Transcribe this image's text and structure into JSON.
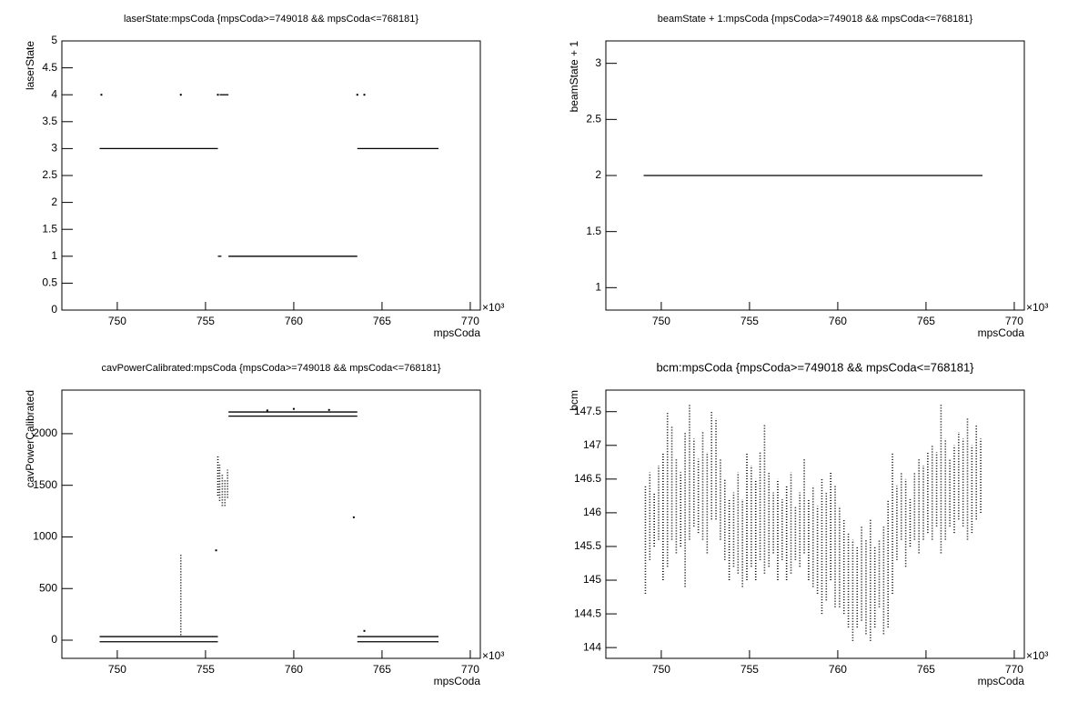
{
  "chart_data": [
    {
      "type": "scatter",
      "title": "laserState:mpsCoda {mpsCoda>=749018 && mpsCoda<=768181}",
      "xlabel": "mpsCoda",
      "ylabel": "laserState",
      "x_multiplier": "×10³",
      "color": "#000000",
      "xlim": [
        746.86,
        770.57
      ],
      "ylim": [
        0,
        5
      ],
      "xticks": [
        750,
        755,
        760,
        765,
        770
      ],
      "yticks": [
        0,
        0.5,
        1,
        1.5,
        2,
        2.5,
        3,
        3.5,
        4,
        4.5,
        5
      ],
      "segments": [
        {
          "y": 3,
          "x0": 749.0,
          "x1": 755.7
        },
        {
          "y": 3,
          "x0": 763.6,
          "x1": 768.2
        },
        {
          "y": 1,
          "x0": 755.7,
          "x1": 755.9
        },
        {
          "y": 1,
          "x0": 756.3,
          "x1": 763.6
        },
        {
          "y": 4,
          "x0": 755.8,
          "x1": 756.3
        }
      ],
      "points": {
        "x": [
          749.1,
          753.6,
          755.7,
          763.6,
          764.0
        ],
        "y": [
          4,
          4,
          4,
          4,
          4
        ]
      }
    },
    {
      "type": "scatter",
      "title": "beamState + 1:mpsCoda {mpsCoda>=749018 && mpsCoda<=768181}",
      "xlabel": "mpsCoda",
      "ylabel": "beamState + 1",
      "x_multiplier": "×10³",
      "color": "#000000",
      "xlim": [
        746.86,
        770.57
      ],
      "ylim": [
        0.8,
        3.2
      ],
      "xticks": [
        750,
        755,
        760,
        765,
        770
      ],
      "yticks": [
        1,
        1.5,
        2,
        2.5,
        3
      ],
      "segments": [
        {
          "y": 2,
          "x0": 749.0,
          "x1": 768.2
        }
      ]
    },
    {
      "type": "scatter",
      "title": "cavPowerCalibrated:mpsCoda {mpsCoda>=749018 && mpsCoda<=768181}",
      "xlabel": "mpsCoda",
      "ylabel": "cavPowerCalibrated",
      "x_multiplier": "×10³",
      "color": "#000000",
      "xlim": [
        746.86,
        770.57
      ],
      "ylim": [
        -176,
        2422
      ],
      "xticks": [
        750,
        755,
        760,
        765,
        770
      ],
      "yticks": [
        0,
        500,
        1000,
        1500,
        2000
      ],
      "segments": [
        {
          "y": 35,
          "x0": 749.0,
          "x1": 755.7
        },
        {
          "y": -15,
          "x0": 749.0,
          "x1": 755.7
        },
        {
          "y": 35,
          "x0": 763.6,
          "x1": 768.2
        },
        {
          "y": -15,
          "x0": 763.6,
          "x1": 768.2
        },
        {
          "y": 2210,
          "x0": 756.3,
          "x1": 763.6
        },
        {
          "y": 2170,
          "x0": 756.3,
          "x1": 763.6
        }
      ],
      "columns": {
        "x": [
          753.6,
          755.7,
          755.8,
          755.95,
          756.1,
          756.25
        ],
        "ymin": [
          50,
          1400,
          1350,
          1300,
          1300,
          1380
        ],
        "ymax": [
          840,
          1780,
          1700,
          1600,
          1550,
          1650
        ]
      },
      "points": {
        "x": [
          755.6,
          763.4,
          764.0,
          758.5,
          760.0,
          762.0
        ],
        "y": [
          870,
          1190,
          90,
          2225,
          2240,
          2230
        ]
      }
    },
    {
      "type": "scatter",
      "title": "bcm:mpsCoda {mpsCoda>=749018 && mpsCoda<=768181}",
      "xlabel": "mpsCoda",
      "ylabel": "bcm",
      "x_multiplier": "×10³",
      "color": "#000000",
      "xlim": [
        746.86,
        770.57
      ],
      "ylim": [
        143.84,
        147.82
      ],
      "xticks": [
        750,
        755,
        760,
        765,
        770
      ],
      "yticks": [
        144,
        144.5,
        145,
        145.5,
        146,
        146.5,
        147,
        147.5
      ],
      "columns": {
        "x": [
          749.1,
          749.35,
          749.6,
          749.85,
          750.1,
          750.35,
          750.6,
          750.85,
          751.1,
          751.35,
          751.6,
          751.85,
          752.1,
          752.35,
          752.6,
          752.85,
          753.1,
          753.35,
          753.6,
          753.85,
          754.1,
          754.35,
          754.6,
          754.85,
          755.1,
          755.35,
          755.6,
          755.85,
          756.1,
          756.35,
          756.6,
          756.85,
          757.1,
          757.35,
          757.6,
          757.85,
          758.1,
          758.35,
          758.6,
          758.85,
          759.1,
          759.35,
          759.6,
          759.85,
          760.1,
          760.35,
          760.6,
          760.85,
          761.1,
          761.35,
          761.6,
          761.85,
          762.1,
          762.35,
          762.6,
          762.85,
          763.1,
          763.35,
          763.6,
          763.85,
          764.1,
          764.35,
          764.6,
          764.85,
          765.1,
          765.35,
          765.6,
          765.85,
          766.1,
          766.35,
          766.6,
          766.85,
          767.1,
          767.35,
          767.6,
          767.85,
          768.1
        ],
        "ymin": [
          144.8,
          145.3,
          145.5,
          145.6,
          145.0,
          145.2,
          145.6,
          145.4,
          145.5,
          144.9,
          145.6,
          145.8,
          145.7,
          145.6,
          145.4,
          145.9,
          145.9,
          145.6,
          145.3,
          145.0,
          145.2,
          145.1,
          144.9,
          145.0,
          145.2,
          145.0,
          145.3,
          145.1,
          145.2,
          145.4,
          145.0,
          145.3,
          145.0,
          145.1,
          145.3,
          145.2,
          145.4,
          145.0,
          144.9,
          144.8,
          144.5,
          144.7,
          145.0,
          144.6,
          144.6,
          144.5,
          144.3,
          144.1,
          144.3,
          144.4,
          144.2,
          144.1,
          144.3,
          144.6,
          144.2,
          144.3,
          144.8,
          145.3,
          145.6,
          145.2,
          145.5,
          145.6,
          145.4,
          145.6,
          145.7,
          145.6,
          145.8,
          145.4,
          145.6,
          145.8,
          145.7,
          145.9,
          145.8,
          145.6,
          145.7,
          145.9,
          146.0
        ],
        "ymax": [
          146.4,
          146.6,
          146.3,
          146.7,
          146.9,
          147.5,
          147.3,
          146.8,
          146.6,
          147.2,
          147.6,
          147.1,
          146.8,
          147.2,
          146.9,
          147.5,
          147.4,
          146.8,
          146.5,
          146.2,
          146.3,
          146.6,
          146.2,
          146.9,
          146.7,
          146.5,
          146.9,
          147.3,
          146.6,
          146.3,
          146.5,
          146.2,
          146.4,
          146.6,
          146.1,
          146.3,
          146.8,
          146.2,
          146.4,
          146.1,
          146.5,
          146.3,
          146.6,
          146.4,
          146.1,
          145.9,
          145.7,
          145.6,
          145.5,
          145.8,
          145.6,
          145.9,
          145.5,
          145.6,
          145.8,
          146.2,
          146.9,
          146.4,
          146.6,
          146.5,
          146.2,
          146.6,
          146.8,
          146.7,
          146.9,
          147.0,
          146.9,
          147.6,
          147.1,
          146.8,
          147.0,
          147.2,
          147.1,
          147.4,
          147.0,
          147.3,
          147.1
        ]
      }
    }
  ]
}
